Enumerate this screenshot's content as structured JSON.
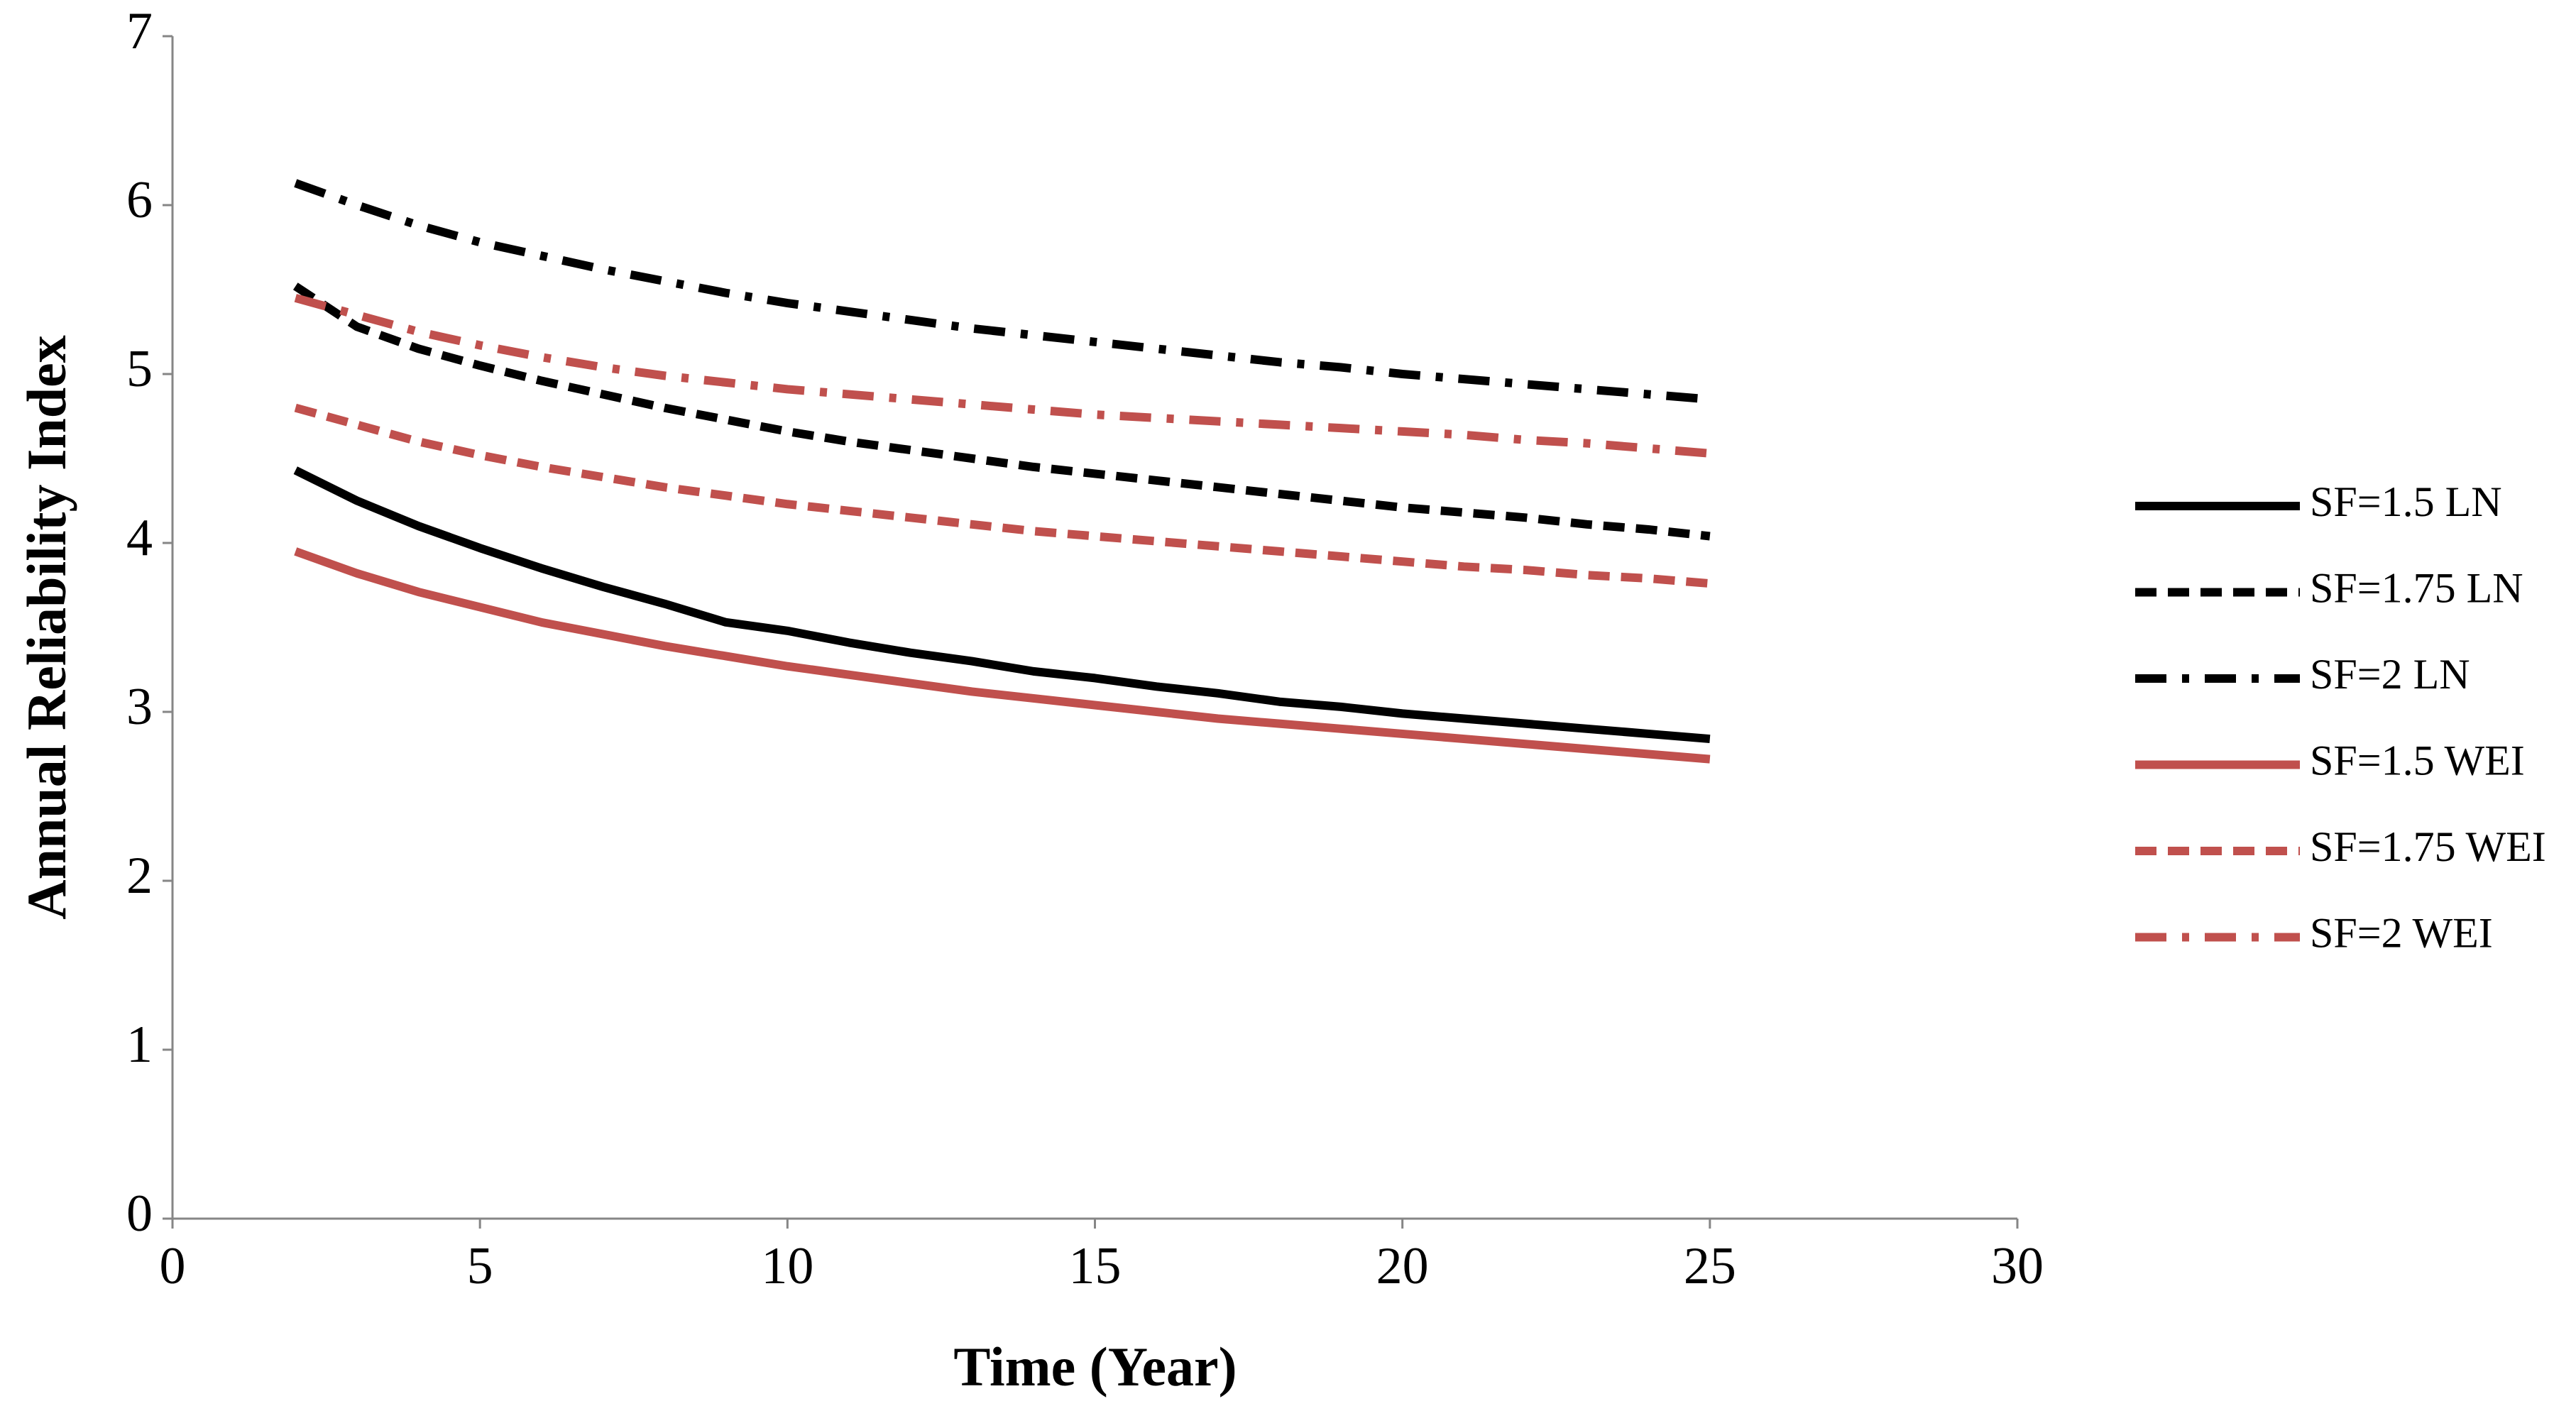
{
  "chart_data": {
    "type": "line",
    "x_label": "Time (Year)",
    "y_label": "Annual Reliability Index",
    "x": [
      2,
      3,
      4,
      5,
      6,
      7,
      8,
      9,
      10,
      11,
      12,
      13,
      14,
      15,
      16,
      17,
      18,
      19,
      20,
      21,
      22,
      23,
      24,
      25
    ],
    "xlim": [
      0,
      30
    ],
    "xticks": [
      0,
      5,
      10,
      15,
      20,
      25,
      30
    ],
    "ylim": [
      0,
      7
    ],
    "yticks": [
      0,
      1,
      2,
      3,
      4,
      5,
      6,
      7
    ],
    "grid": false,
    "legend": "right",
    "series": [
      {
        "name": "SF=1.5 LN",
        "color": "#000000",
        "dash": "solid",
        "values": [
          4.43,
          4.25,
          4.1,
          3.97,
          3.85,
          3.74,
          3.64,
          3.53,
          3.48,
          3.41,
          3.35,
          3.3,
          3.24,
          3.2,
          3.15,
          3.11,
          3.06,
          3.03,
          2.99,
          2.96,
          2.93,
          2.9,
          2.87,
          2.84
        ]
      },
      {
        "name": "SF=1.75 LN",
        "color": "#000000",
        "dash": "dash",
        "values": [
          5.52,
          5.28,
          5.15,
          5.05,
          4.96,
          4.88,
          4.8,
          4.73,
          4.66,
          4.6,
          4.55,
          4.5,
          4.45,
          4.41,
          4.37,
          4.33,
          4.29,
          4.25,
          4.21,
          4.18,
          4.15,
          4.11,
          4.08,
          4.04
        ]
      },
      {
        "name": "SF=2 LN",
        "color": "#000000",
        "dash": "dashdot",
        "values": [
          6.13,
          6.0,
          5.88,
          5.78,
          5.7,
          5.62,
          5.55,
          5.48,
          5.42,
          5.37,
          5.32,
          5.27,
          5.23,
          5.19,
          5.15,
          5.11,
          5.07,
          5.04,
          5.0,
          4.97,
          4.94,
          4.91,
          4.88,
          4.85
        ]
      },
      {
        "name": "SF=1.5 WEI",
        "color": "#c0504d",
        "dash": "solid",
        "values": [
          3.95,
          3.82,
          3.71,
          3.62,
          3.53,
          3.46,
          3.39,
          3.33,
          3.27,
          3.22,
          3.17,
          3.12,
          3.08,
          3.04,
          3.0,
          2.96,
          2.93,
          2.9,
          2.87,
          2.84,
          2.81,
          2.78,
          2.75,
          2.72
        ]
      },
      {
        "name": "SF=1.75 WEI",
        "color": "#c0504d",
        "dash": "dash",
        "values": [
          4.8,
          4.7,
          4.6,
          4.52,
          4.45,
          4.39,
          4.33,
          4.28,
          4.23,
          4.19,
          4.15,
          4.11,
          4.07,
          4.04,
          4.01,
          3.98,
          3.95,
          3.92,
          3.89,
          3.86,
          3.84,
          3.81,
          3.79,
          3.76
        ]
      },
      {
        "name": "SF=2 WEI",
        "color": "#c0504d",
        "dash": "dashdot",
        "values": [
          5.45,
          5.35,
          5.25,
          5.17,
          5.1,
          5.04,
          4.99,
          4.95,
          4.91,
          4.88,
          4.85,
          4.82,
          4.79,
          4.76,
          4.74,
          4.72,
          4.7,
          4.68,
          4.66,
          4.64,
          4.61,
          4.59,
          4.56,
          4.53
        ]
      }
    ]
  }
}
